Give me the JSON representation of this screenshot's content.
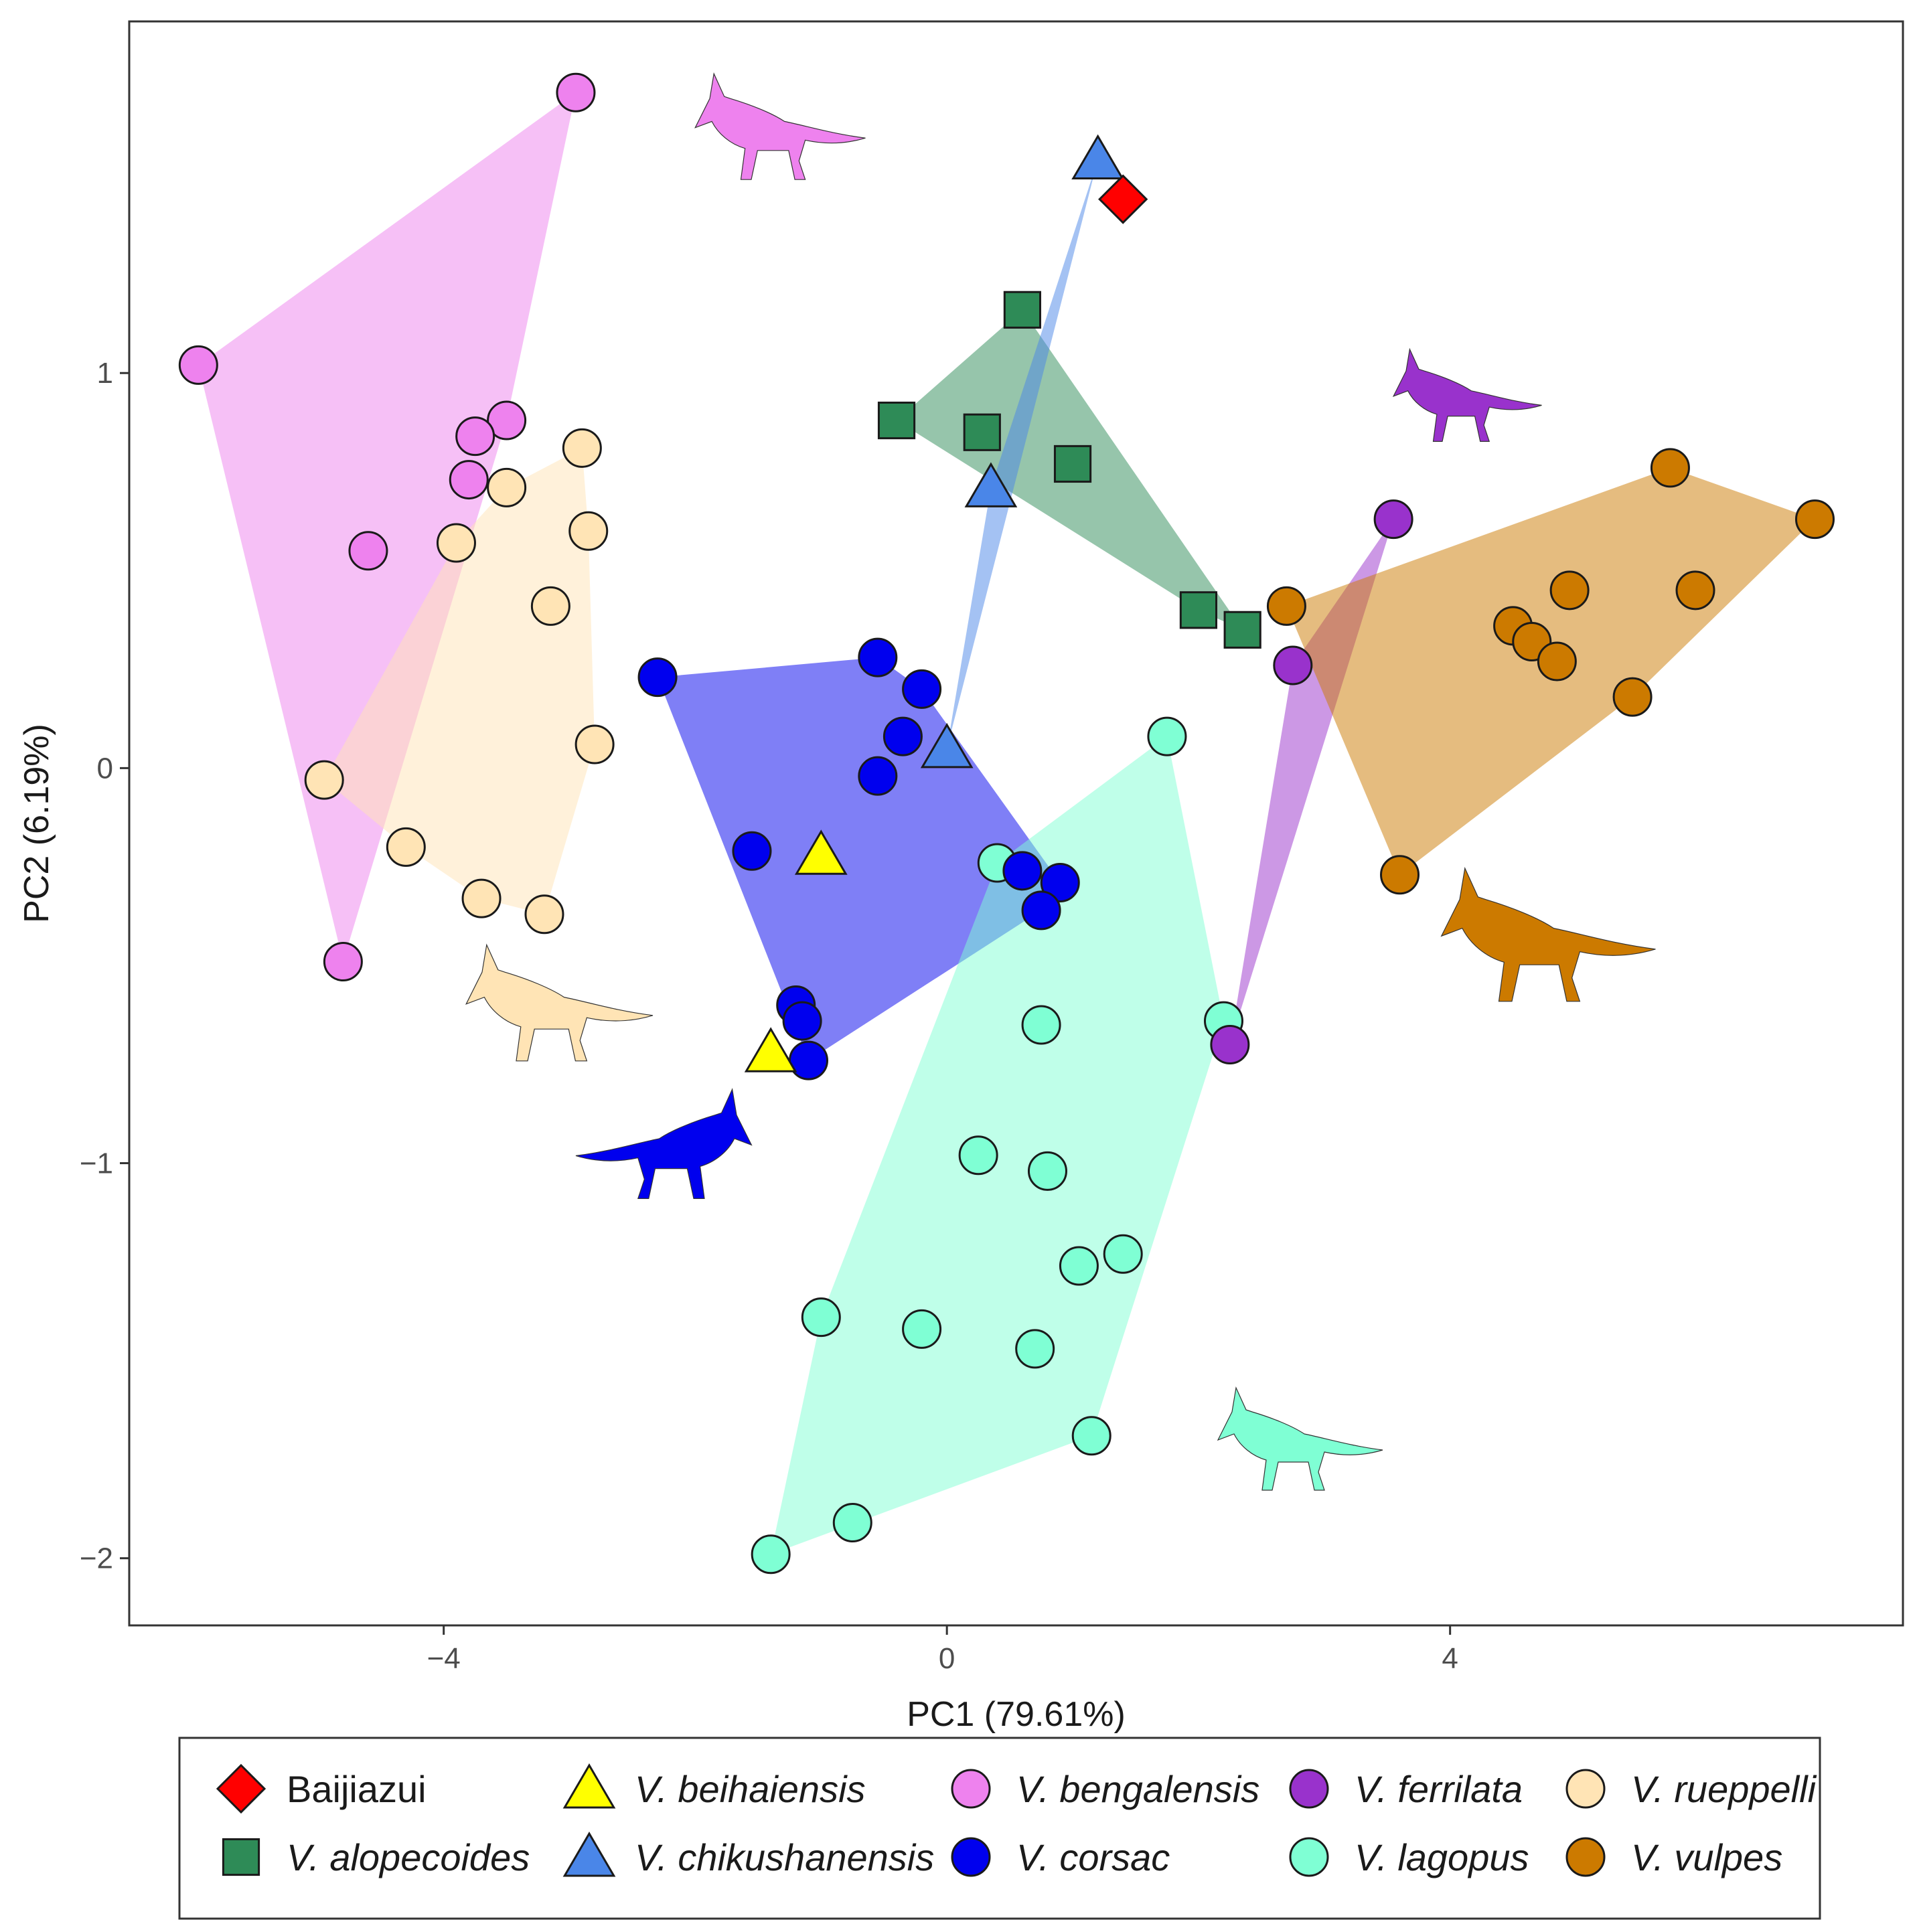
{
  "chart_data": {
    "type": "scatter",
    "xlabel": "PC1 (79.61%)",
    "ylabel": "PC2 (6.19%)",
    "xlim": [
      -6.5,
      7.6
    ],
    "ylim": [
      -2.17,
      1.89
    ],
    "xticks": [
      -4,
      0,
      4
    ],
    "xtick_labels": [
      "−4",
      "0",
      "4"
    ],
    "yticks": [
      -2,
      -1,
      0,
      1
    ],
    "ytick_labels": [
      "−2",
      "−1",
      "0",
      "1"
    ],
    "grid": false,
    "legend_position": "bottom",
    "hulls": true,
    "silhouettes": "fox silhouettes in each species colour near its cluster",
    "series": [
      {
        "name": "Baijiazui",
        "italic": false,
        "shape": "diamond",
        "color": "#ff0000",
        "points": [
          [
            1.4,
            1.44
          ]
        ]
      },
      {
        "name": "V. alopecoides",
        "italic": true,
        "shape": "square",
        "color": "#2e8b57",
        "points": [
          [
            0.6,
            1.16
          ],
          [
            -0.4,
            0.88
          ],
          [
            0.28,
            0.85
          ],
          [
            1.0,
            0.77
          ],
          [
            2.0,
            0.4
          ],
          [
            2.35,
            0.35
          ]
        ]
      },
      {
        "name": "V. beihaiensis",
        "italic": true,
        "shape": "triangle",
        "color": "#ffff00",
        "points": [
          [
            -1.0,
            -0.22
          ],
          [
            -1.4,
            -0.72
          ]
        ]
      },
      {
        "name": "V. chikushanensis",
        "italic": true,
        "shape": "triangle",
        "color": "#4a86e8",
        "points": [
          [
            1.2,
            1.54
          ],
          [
            0.35,
            0.71
          ],
          [
            0.0,
            0.05
          ]
        ]
      },
      {
        "name": "V. bengalensis",
        "italic": true,
        "shape": "circle",
        "color": "#ee82ee",
        "points": [
          [
            -2.95,
            1.71
          ],
          [
            -5.95,
            1.02
          ],
          [
            -3.5,
            0.88
          ],
          [
            -3.75,
            0.84
          ],
          [
            -3.8,
            0.73
          ],
          [
            -4.6,
            0.55
          ],
          [
            -4.8,
            -0.49
          ]
        ]
      },
      {
        "name": "V. ferrilata",
        "italic": true,
        "shape": "circle",
        "color": "#9932cc",
        "points": [
          [
            3.55,
            0.63
          ],
          [
            2.75,
            0.26
          ],
          [
            2.25,
            -0.7
          ]
        ]
      },
      {
        "name": "V. rueppelli",
        "italic": true,
        "shape": "circle",
        "color": "#ffe4b5",
        "points": [
          [
            -2.9,
            0.81
          ],
          [
            -3.5,
            0.71
          ],
          [
            -3.9,
            0.57
          ],
          [
            -2.85,
            0.6
          ],
          [
            -3.15,
            0.41
          ],
          [
            -2.8,
            0.06
          ],
          [
            -4.95,
            -0.03
          ],
          [
            -4.3,
            -0.2
          ],
          [
            -3.7,
            -0.33
          ],
          [
            -3.2,
            -0.37
          ]
        ]
      },
      {
        "name": "V. corsac",
        "italic": true,
        "shape": "circle",
        "color": "#0000ee",
        "points": [
          [
            -2.3,
            0.23
          ],
          [
            -0.55,
            0.28
          ],
          [
            -0.2,
            0.2
          ],
          [
            -0.35,
            0.08
          ],
          [
            -0.55,
            -0.02
          ],
          [
            -1.55,
            -0.21
          ],
          [
            0.6,
            -0.26
          ],
          [
            0.9,
            -0.29
          ],
          [
            0.75,
            -0.36
          ],
          [
            -1.2,
            -0.6
          ],
          [
            -1.15,
            -0.64
          ],
          [
            -1.1,
            -0.74
          ]
        ]
      },
      {
        "name": "V. lagopus",
        "italic": true,
        "shape": "circle",
        "color": "#7fffd4",
        "points": [
          [
            1.75,
            0.08
          ],
          [
            0.4,
            -0.24
          ],
          [
            2.2,
            -0.64
          ],
          [
            0.75,
            -0.65
          ],
          [
            0.25,
            -0.98
          ],
          [
            0.8,
            -1.02
          ],
          [
            1.4,
            -1.23
          ],
          [
            1.05,
            -1.26
          ],
          [
            -1.0,
            -1.39
          ],
          [
            -0.2,
            -1.42
          ],
          [
            0.7,
            -1.47
          ],
          [
            1.15,
            -1.69
          ],
          [
            -0.75,
            -1.91
          ],
          [
            -1.4,
            -1.99
          ]
        ]
      },
      {
        "name": "V. vulpes",
        "italic": true,
        "shape": "circle",
        "color": "#cc7a00",
        "points": [
          [
            5.75,
            0.76
          ],
          [
            6.9,
            0.63
          ],
          [
            2.7,
            0.41
          ],
          [
            4.95,
            0.45
          ],
          [
            5.95,
            0.45
          ],
          [
            4.5,
            0.36
          ],
          [
            4.65,
            0.32
          ],
          [
            4.85,
            0.27
          ],
          [
            5.45,
            0.18
          ],
          [
            3.6,
            -0.27
          ]
        ]
      }
    ]
  }
}
